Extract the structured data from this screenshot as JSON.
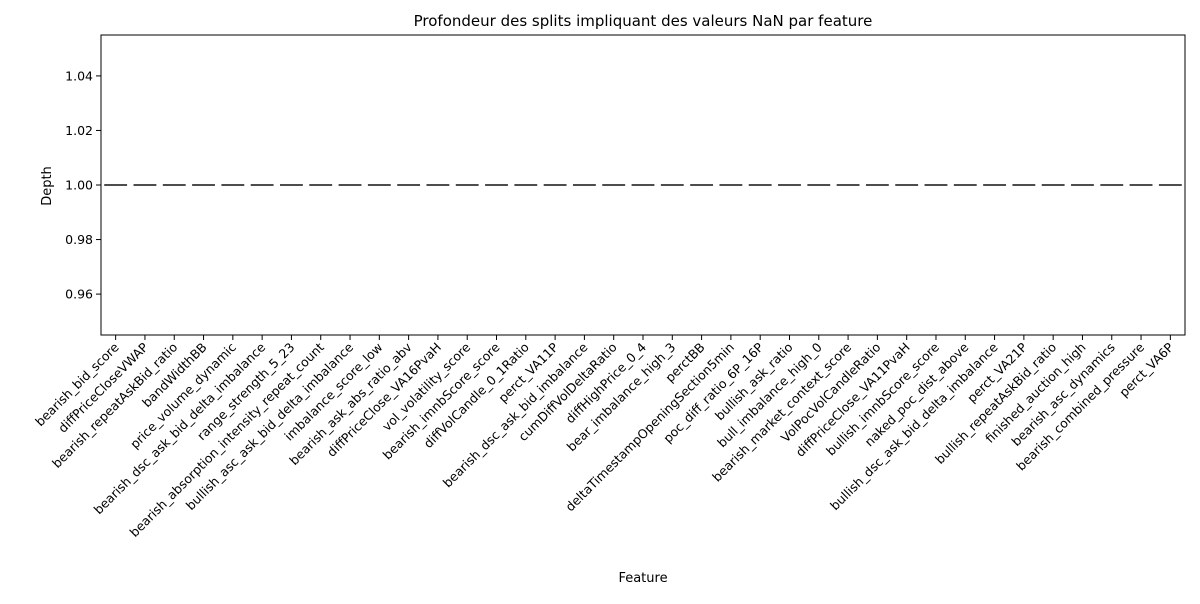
{
  "chart_data": {
    "type": "box",
    "title": "Profondeur des splits impliquant des valeurs NaN par feature",
    "xlabel": "Feature",
    "ylabel": "Depth",
    "ylim": [
      0.945,
      1.055
    ],
    "yticks": [
      0.96,
      0.98,
      1.0,
      1.02,
      1.04
    ],
    "ytick_labels": [
      "0.96",
      "0.98",
      "1.00",
      "1.02",
      "1.04"
    ],
    "grid": false,
    "categories": [
      "bearish_bid_score",
      "diffPriceCloseVWAP",
      "bearish_repeatAskBid_ratio",
      "bandWidthBB",
      "price_volume_dynamic",
      "bearish_dsc_ask_bid_delta_imbalance",
      "range_strength_5_23",
      "bearish_absorption_intensity_repeat_count",
      "bullish_asc_ask_bid_delta_imbalance",
      "imbalance_score_low",
      "bearish_ask_abs_ratio_abv",
      "diffPriceClose_VA16PvaH",
      "vol_volatility_score",
      "bearish_imnbScore_score",
      "diffVolCandle_0_1Ratio",
      "perct_VA11P",
      "bearish_dsc_ask_bid_imbalance",
      "cumDiffVolDeltaRatio",
      "diffHighPrice_0_4",
      "bear_imbalance_high_3",
      "perctBB",
      "deltaTimestampOpeningSection5min",
      "poc_diff_ratio_6P_16P",
      "bullish_ask_ratio",
      "bull_imbalance_high_0",
      "bearish_market_context_score",
      "VolPocVolCandleRatio",
      "diffPriceClose_VA11PvaH",
      "bullish_imnbScore_score",
      "naked_poc_dist_above",
      "bullish_dsc_ask_bid_delta_imbalance",
      "perct_VA21P",
      "bullish_repeatAskBid_ratio",
      "finished_auction_high",
      "bearish_asc_dynamics",
      "bearish_combined_pressure",
      "perct_VA6P"
    ],
    "values": [
      1,
      1,
      1,
      1,
      1,
      1,
      1,
      1,
      1,
      1,
      1,
      1,
      1,
      1,
      1,
      1,
      1,
      1,
      1,
      1,
      1,
      1,
      1,
      1,
      1,
      1,
      1,
      1,
      1,
      1,
      1,
      1,
      1,
      1,
      1,
      1,
      1
    ],
    "box_color": "#4d4d4d"
  }
}
